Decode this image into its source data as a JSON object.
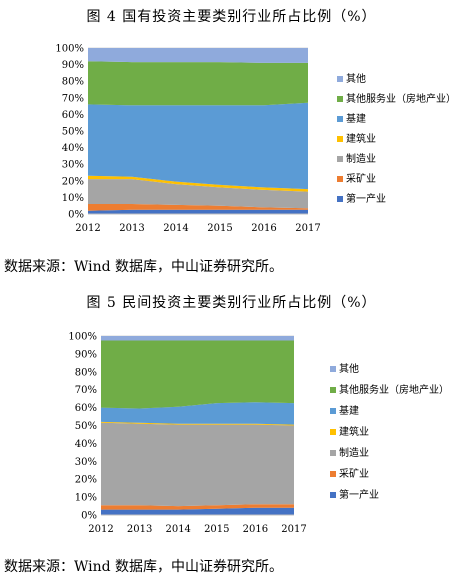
{
  "chart_data": [
    {
      "type": "area",
      "stacked": true,
      "title": "图 4 国有投资主要类别行业所占比例（%）",
      "source": "数据来源：Wind 数据库，中山证券研究所。",
      "x": [
        "2012",
        "2013",
        "2014",
        "2015",
        "2016",
        "2017"
      ],
      "ylim": [
        0,
        100
      ],
      "yticks": [
        "0%",
        "10%",
        "20%",
        "30%",
        "40%",
        "50%",
        "60%",
        "70%",
        "80%",
        "90%",
        "100%"
      ],
      "legend_position": "right",
      "series": [
        {
          "name": "第一产业",
          "color": "#4472C4",
          "values": [
            2,
            2.5,
            2.5,
            2.5,
            2.5,
            2.5
          ]
        },
        {
          "name": "采矿业",
          "color": "#ED7D31",
          "values": [
            4,
            3.5,
            3,
            2.5,
            1.5,
            1
          ]
        },
        {
          "name": "制造业",
          "color": "#A5A5A5",
          "values": [
            15,
            15,
            12.5,
            11,
            10.5,
            10
          ]
        },
        {
          "name": "建筑业",
          "color": "#FFC000",
          "values": [
            2,
            1.5,
            1.5,
            1.5,
            1.5,
            1.5
          ]
        },
        {
          "name": "基建",
          "color": "#5B9BD5",
          "values": [
            43,
            43,
            46,
            48,
            49.5,
            52
          ]
        },
        {
          "name": "其他服务业（房地产业）",
          "color": "#70AD47",
          "values": [
            26,
            26,
            26,
            26,
            25.5,
            24
          ]
        },
        {
          "name": "其他",
          "color": "#8FAADC",
          "values": [
            8,
            8.5,
            8.5,
            8.5,
            9,
            9
          ]
        }
      ]
    },
    {
      "type": "area",
      "stacked": true,
      "title": "图 5 民间投资主要类别行业所占比例（%）",
      "source": "数据来源：Wind 数据库，中山证券研究所。",
      "x": [
        "2012",
        "2013",
        "2014",
        "2015",
        "2016",
        "2017"
      ],
      "ylim": [
        0,
        100
      ],
      "yticks": [
        "0%",
        "10%",
        "20%",
        "30%",
        "40%",
        "50%",
        "60%",
        "70%",
        "80%",
        "90%",
        "100%"
      ],
      "legend_position": "right",
      "series": [
        {
          "name": "第一产业",
          "color": "#4472C4",
          "values": [
            3,
            3,
            3,
            3.5,
            4,
            4
          ]
        },
        {
          "name": "采矿业",
          "color": "#ED7D31",
          "values": [
            2.5,
            2.5,
            2,
            2,
            2,
            2
          ]
        },
        {
          "name": "制造业",
          "color": "#A5A5A5",
          "values": [
            46,
            45.5,
            45.5,
            45,
            44.5,
            44
          ]
        },
        {
          "name": "建筑业",
          "color": "#FFC000",
          "values": [
            0.5,
            0.5,
            0.5,
            0.5,
            0.5,
            0.5
          ]
        },
        {
          "name": "基建",
          "color": "#5B9BD5",
          "values": [
            8,
            8,
            9.5,
            11.5,
            12,
            12
          ]
        },
        {
          "name": "其他服务业（房地产业）",
          "color": "#70AD47",
          "values": [
            37.5,
            38,
            37,
            35,
            34.5,
            35
          ]
        },
        {
          "name": "其他",
          "color": "#8FAADC",
          "values": [
            2.5,
            2.5,
            2.5,
            2.5,
            2.5,
            2.5
          ]
        }
      ]
    }
  ]
}
